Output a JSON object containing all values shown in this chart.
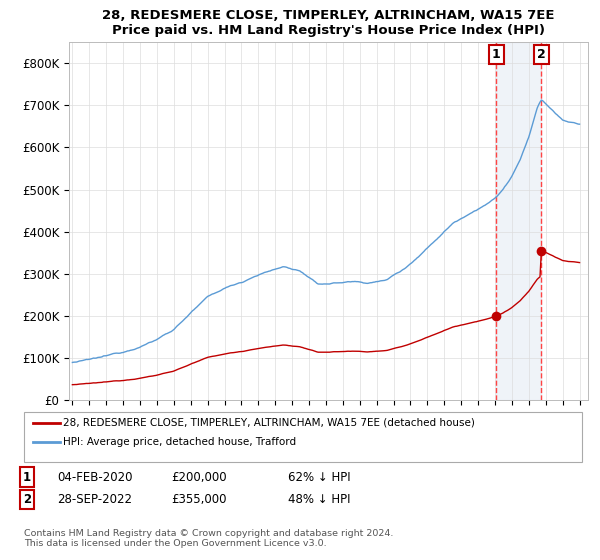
{
  "title": "28, REDESMERE CLOSE, TIMPERLEY, ALTRINCHAM, WA15 7EE",
  "subtitle": "Price paid vs. HM Land Registry's House Price Index (HPI)",
  "ylim": [
    0,
    850000
  ],
  "yticks": [
    0,
    100000,
    200000,
    300000,
    400000,
    500000,
    600000,
    700000,
    800000
  ],
  "ytick_labels": [
    "£0",
    "£100K",
    "£200K",
    "£300K",
    "£400K",
    "£500K",
    "£600K",
    "£700K",
    "£800K"
  ],
  "hpi_color": "#5b9bd5",
  "price_color": "#c00000",
  "sale1_date": 2020.08,
  "sale1_price": 200000,
  "sale2_date": 2022.73,
  "sale2_price": 355000,
  "legend_entry1": "28, REDESMERE CLOSE, TIMPERLEY, ALTRINCHAM, WA15 7EE (detached house)",
  "legend_entry2": "HPI: Average price, detached house, Trafford",
  "table_row1": [
    "1",
    "04-FEB-2020",
    "£200,000",
    "62% ↓ HPI"
  ],
  "table_row2": [
    "2",
    "28-SEP-2022",
    "£355,000",
    "48% ↓ HPI"
  ],
  "footnote": "Contains HM Land Registry data © Crown copyright and database right 2024.\nThis data is licensed under the Open Government Licence v3.0.",
  "bg_shade_color": "#dce6f1",
  "bg_shade_alpha": 0.45
}
